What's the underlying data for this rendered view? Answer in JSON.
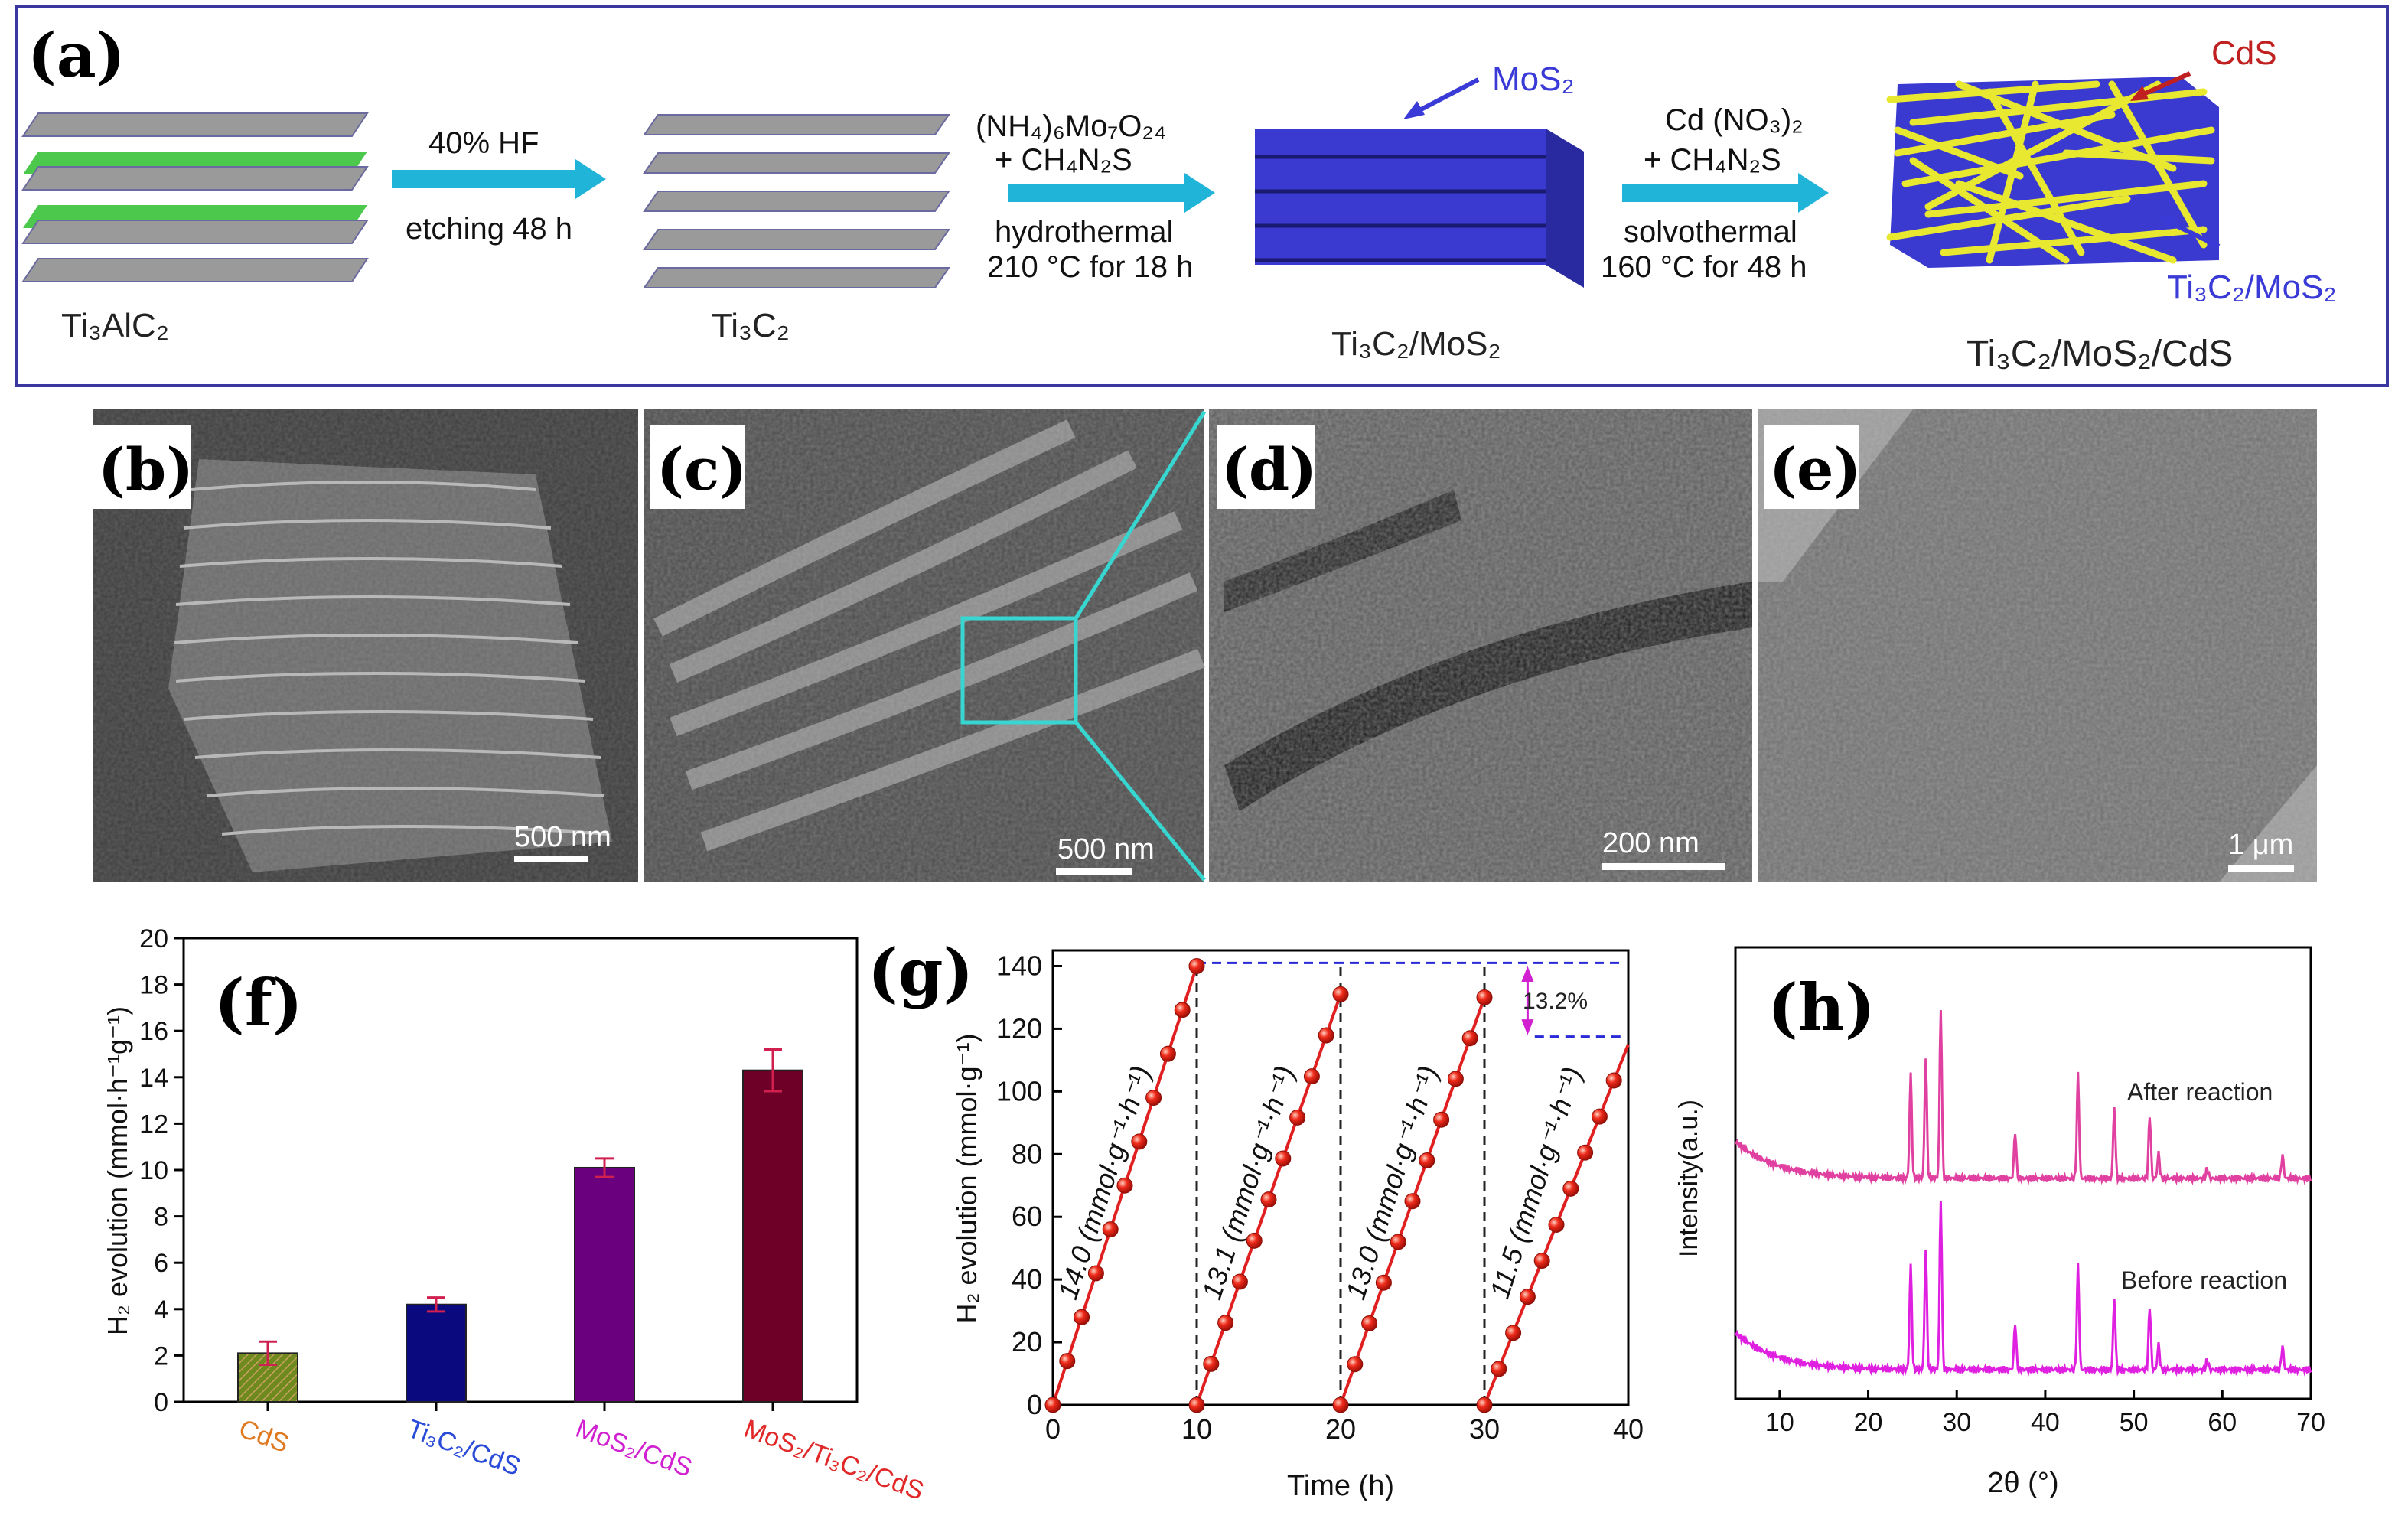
{
  "panels": {
    "a": "(a)",
    "b": "(b)",
    "c": "(c)",
    "d": "(d)",
    "e": "(e)",
    "f": "(f)",
    "g": "(g)",
    "h": "(h)"
  },
  "scheme": {
    "materials": {
      "ti3alc2": "Ti₃AlC₂",
      "ti3c2": "Ti₃C₂",
      "ti3c2_mos2": "Ti₃C₂/MoS₂",
      "ti3c2_mos2_cds": "Ti₃C₂/MoS₂/CdS"
    },
    "step1": {
      "top": "40% HF",
      "bottom": "etching 48 h"
    },
    "step2": {
      "line1": "(NH₄)₆Mo₇O₂₄",
      "line2": "+ CH₄N₂S",
      "line3": "hydrothermal",
      "line4": "210 °C for 18 h"
    },
    "step3": {
      "line1": "Cd (NO₃)₂",
      "line2": "+ CH₄N₂S",
      "line3": "solvothermal",
      "line4": "160 °C for 48 h"
    },
    "callouts": {
      "mos2": "MoS₂",
      "cds": "CdS",
      "ti3c2_mos2": "Ti₃C₂/MoS₂"
    },
    "colors": {
      "border": "#3a38a0",
      "arrow": "#20b4d8",
      "mos2": "#3a3ad6",
      "cds": "#e8e830",
      "sheet": "#8a8a8a",
      "al": "#3cc83c"
    }
  },
  "sem": {
    "b": {
      "scale": "500 nm"
    },
    "c": {
      "scale": "500 nm"
    },
    "d": {
      "scale": "200 nm"
    },
    "e": {
      "scale": "1 μm"
    }
  },
  "chart_data": [
    {
      "id": "f",
      "type": "bar",
      "ylabel": "H₂ evolution (mmol·h⁻¹g⁻¹)",
      "ylim": [
        0,
        20
      ],
      "yticks": [
        0,
        2,
        4,
        6,
        8,
        10,
        12,
        14,
        16,
        18,
        20
      ],
      "categories": [
        "CdS",
        "Ti₃C₂/CdS",
        "MoS₂/CdS",
        "MoS₂/Ti₃C₂/CdS"
      ],
      "values": [
        2.1,
        4.2,
        10.1,
        14.3
      ],
      "errors": [
        0.5,
        0.3,
        0.4,
        0.9
      ],
      "bar_colors": [
        "#6e8a1e",
        "#0a0a7e",
        "#6a007e",
        "#6e0028"
      ],
      "label_colors": [
        "#e07a20",
        "#2a4ad8",
        "#d020d0",
        "#e02828"
      ]
    },
    {
      "id": "g",
      "type": "line",
      "xlabel": "Time (h)",
      "ylabel": "H₂ evolution (mmol·g⁻¹)",
      "xlim": [
        0,
        40
      ],
      "ylim": [
        0,
        145
      ],
      "xticks": [
        0,
        10,
        20,
        30,
        40
      ],
      "yticks": [
        0,
        20,
        40,
        60,
        80,
        100,
        120,
        140
      ],
      "cycles": [
        {
          "start": 0,
          "times": [
            0,
            1,
            2,
            3,
            4,
            5,
            6,
            7,
            8,
            9,
            10
          ],
          "values": [
            0,
            14.0,
            28.0,
            42.0,
            56.0,
            70.0,
            84.0,
            98.0,
            112.0,
            126.0,
            140.0
          ],
          "label": "14.0 (mmol·g⁻¹·h⁻¹)"
        },
        {
          "start": 10,
          "times": [
            10,
            11,
            12,
            13,
            14,
            15,
            16,
            17,
            18,
            19,
            20
          ],
          "values": [
            0,
            13.1,
            26.2,
            39.3,
            52.4,
            65.5,
            78.6,
            91.7,
            104.8,
            117.9,
            131.0
          ],
          "label": "13.1 (mmol·g⁻¹·h⁻¹)"
        },
        {
          "start": 20,
          "times": [
            20,
            21,
            22,
            23,
            24,
            25,
            26,
            27,
            28,
            29,
            30
          ],
          "values": [
            0,
            13.0,
            26.0,
            39.0,
            52.0,
            65.0,
            78.0,
            91.0,
            104.0,
            117.0,
            130.0
          ],
          "label": "13.0 (mmol·g⁻¹·h⁻¹)"
        },
        {
          "start": 30,
          "times": [
            30,
            31,
            32,
            33,
            34,
            35,
            36,
            37,
            38,
            39
          ],
          "values": [
            0,
            11.5,
            23.0,
            34.5,
            46.0,
            57.5,
            69.0,
            80.5,
            92.0,
            103.5
          ],
          "label": "11.5 (mmol·g⁻¹·h⁻¹)"
        }
      ],
      "annotation": "13.2%",
      "line_color": "#e02020",
      "ref_line_color": "#2a2ad8",
      "annotation_color": "#d020d0"
    },
    {
      "id": "h",
      "type": "line",
      "xlabel": "2θ (°)",
      "ylabel": "Intensity(a.u.)",
      "xlim": [
        5,
        70
      ],
      "xticks": [
        10,
        20,
        30,
        40,
        50,
        60,
        70
      ],
      "peaks": [
        24.8,
        26.5,
        28.2,
        36.6,
        43.7,
        47.8,
        51.8,
        52.8,
        58.3,
        66.8
      ],
      "peak_heights": [
        0.62,
        0.72,
        1.0,
        0.28,
        0.62,
        0.42,
        0.38,
        0.15,
        0.06,
        0.14
      ],
      "series": [
        {
          "name": "After reaction",
          "offset": 1,
          "color": "#e040a0"
        },
        {
          "name": "Before reaction",
          "offset": 0,
          "color": "#e020e0"
        }
      ]
    }
  ]
}
